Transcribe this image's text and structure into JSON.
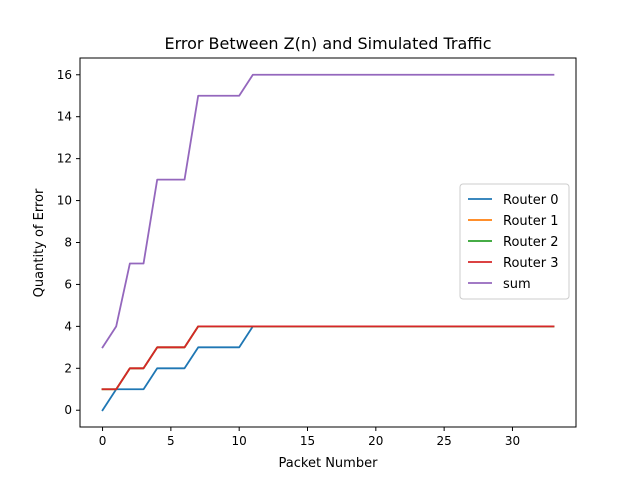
{
  "chart_data": {
    "type": "line",
    "title": "Error Between Z(n) and Simulated Traffic",
    "xlabel": "Packet Number",
    "ylabel": "Quantity of Error",
    "xlim": [
      -1.65,
      34.65
    ],
    "ylim": [
      -0.8,
      16.8
    ],
    "xticks": [
      0,
      5,
      10,
      15,
      20,
      25,
      30
    ],
    "yticks": [
      0,
      2,
      4,
      6,
      8,
      10,
      12,
      14,
      16
    ],
    "grid": false,
    "legend_position": "center-right",
    "x": [
      0,
      1,
      2,
      3,
      4,
      5,
      6,
      7,
      8,
      9,
      10,
      11,
      12,
      13,
      14,
      15,
      16,
      17,
      18,
      19,
      20,
      21,
      22,
      23,
      24,
      25,
      26,
      27,
      28,
      29,
      30,
      31,
      32,
      33
    ],
    "series": [
      {
        "name": "Router 0",
        "color": "#1f77b4",
        "values": [
          0,
          1,
          1,
          1,
          2,
          2,
          2,
          3,
          3,
          3,
          3,
          4,
          4,
          4,
          4,
          4,
          4,
          4,
          4,
          4,
          4,
          4,
          4,
          4,
          4,
          4,
          4,
          4,
          4,
          4,
          4,
          4,
          4,
          4
        ]
      },
      {
        "name": "Router 1",
        "color": "#ff7f0e",
        "values": [
          1,
          1,
          2,
          2,
          3,
          3,
          3,
          4,
          4,
          4,
          4,
          4,
          4,
          4,
          4,
          4,
          4,
          4,
          4,
          4,
          4,
          4,
          4,
          4,
          4,
          4,
          4,
          4,
          4,
          4,
          4,
          4,
          4,
          4
        ]
      },
      {
        "name": "Router 2",
        "color": "#2ca02c",
        "values": [
          1,
          1,
          2,
          2,
          3,
          3,
          3,
          4,
          4,
          4,
          4,
          4,
          4,
          4,
          4,
          4,
          4,
          4,
          4,
          4,
          4,
          4,
          4,
          4,
          4,
          4,
          4,
          4,
          4,
          4,
          4,
          4,
          4,
          4
        ]
      },
      {
        "name": "Router 3",
        "color": "#d62728",
        "values": [
          1,
          1,
          2,
          2,
          3,
          3,
          3,
          4,
          4,
          4,
          4,
          4,
          4,
          4,
          4,
          4,
          4,
          4,
          4,
          4,
          4,
          4,
          4,
          4,
          4,
          4,
          4,
          4,
          4,
          4,
          4,
          4,
          4,
          4
        ]
      },
      {
        "name": "sum",
        "color": "#9467bd",
        "values": [
          3,
          4,
          7,
          7,
          11,
          11,
          11,
          15,
          15,
          15,
          15,
          16,
          16,
          16,
          16,
          16,
          16,
          16,
          16,
          16,
          16,
          16,
          16,
          16,
          16,
          16,
          16,
          16,
          16,
          16,
          16,
          16,
          16,
          16
        ]
      }
    ]
  }
}
